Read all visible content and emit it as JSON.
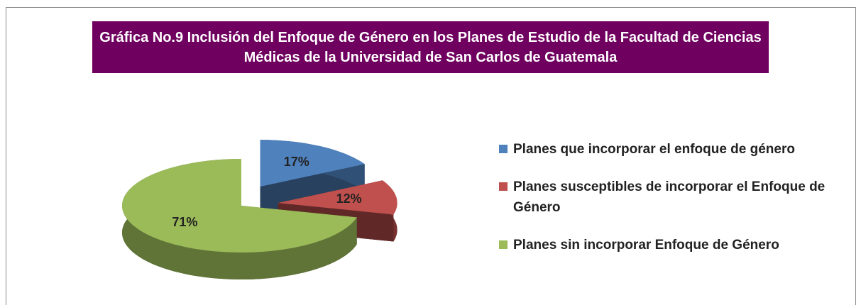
{
  "chart_data": {
    "type": "pie",
    "title": "Gráfica No.9 Inclusión del Enfoque de Género en los Planes de Estudio de la Facultad de Ciencias Médicas de la Universidad de San Carlos de Guatemala",
    "categories": [
      "Planes que incorporar el enfoque de género",
      "Planes susceptibles de incorporar el Enfoque de Género",
      "Planes sin incorporar Enfoque de Género"
    ],
    "values": [
      17,
      12,
      71
    ],
    "value_labels": [
      "17%",
      "12%",
      "71%"
    ],
    "colors": [
      "#4f81bd",
      "#c0504d",
      "#9bbb59"
    ],
    "legend": "right"
  }
}
